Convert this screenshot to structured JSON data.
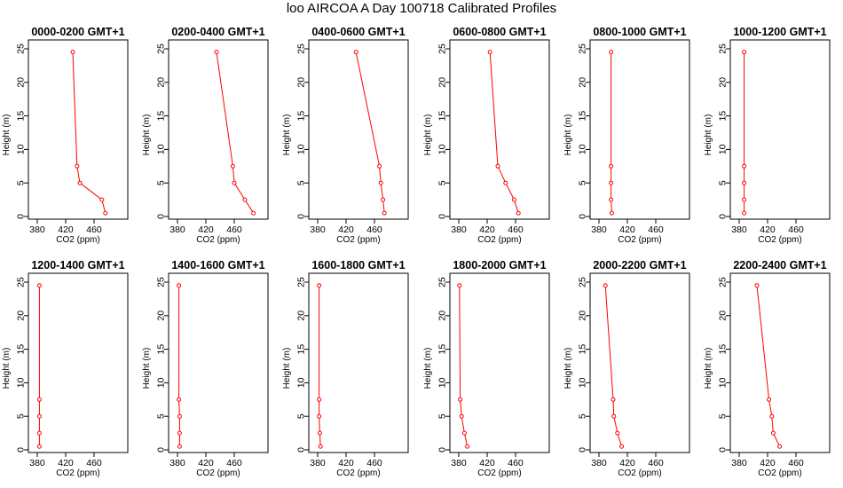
{
  "figure": {
    "title": "loo AIRCOA A  Day 100718  Calibrated Profiles"
  },
  "style": {
    "line_color": "#ff0000",
    "axis_color": "#000000"
  },
  "chart_data": [
    {
      "type": "line",
      "title": "0000-0200 GMT+1",
      "xlabel": "CO2 (ppm)",
      "ylabel": "Height (m)",
      "xlim": [
        380,
        495
      ],
      "ylim": [
        0,
        25
      ],
      "xticks": [
        380,
        420,
        460
      ],
      "yticks": [
        0,
        5,
        10,
        15,
        20,
        25
      ],
      "x": [
        430,
        436,
        440,
        471,
        476
      ],
      "y": [
        24.5,
        7.5,
        5,
        2.5,
        0.5
      ]
    },
    {
      "type": "line",
      "title": "0200-0400 GMT+1",
      "xlabel": "CO2 (ppm)",
      "ylabel": "Height (m)",
      "xlim": [
        380,
        495
      ],
      "ylim": [
        0,
        25
      ],
      "xticks": [
        380,
        420,
        460
      ],
      "yticks": [
        0,
        5,
        10,
        15,
        20,
        25
      ],
      "x": [
        435,
        458,
        460,
        475,
        487
      ],
      "y": [
        24.5,
        7.5,
        5,
        2.5,
        0.5
      ]
    },
    {
      "type": "line",
      "title": "0400-0600 GMT+1",
      "xlabel": "CO2 (ppm)",
      "ylabel": "Height (m)",
      "xlim": [
        380,
        495
      ],
      "ylim": [
        0,
        25
      ],
      "xticks": [
        380,
        420,
        460
      ],
      "yticks": [
        0,
        5,
        10,
        15,
        20,
        25
      ],
      "x": [
        434,
        467,
        469,
        472,
        474
      ],
      "y": [
        24.5,
        7.5,
        5,
        2.5,
        0.5
      ]
    },
    {
      "type": "line",
      "title": "0600-0800 GMT+1",
      "xlabel": "CO2 (ppm)",
      "ylabel": "Height (m)",
      "xlim": [
        380,
        495
      ],
      "ylim": [
        0,
        25
      ],
      "xticks": [
        380,
        420,
        460
      ],
      "yticks": [
        0,
        5,
        10,
        15,
        20,
        25
      ],
      "x": [
        424,
        435,
        446,
        458,
        464
      ],
      "y": [
        24.5,
        7.5,
        5,
        2.5,
        0.5
      ]
    },
    {
      "type": "line",
      "title": "0800-1000 GMT+1",
      "xlabel": "CO2 (ppm)",
      "ylabel": "Height (m)",
      "xlim": [
        380,
        495
      ],
      "ylim": [
        0,
        25
      ],
      "xticks": [
        380,
        420,
        460
      ],
      "yticks": [
        0,
        5,
        10,
        15,
        20,
        25
      ],
      "x": [
        397,
        397,
        397,
        397,
        398
      ],
      "y": [
        24.5,
        7.5,
        5,
        2.5,
        0.5
      ]
    },
    {
      "type": "line",
      "title": "1000-1200 GMT+1",
      "xlabel": "CO2 (ppm)",
      "ylabel": "Height (m)",
      "xlim": [
        380,
        495
      ],
      "ylim": [
        0,
        25
      ],
      "xticks": [
        380,
        420,
        460
      ],
      "yticks": [
        0,
        5,
        10,
        15,
        20,
        25
      ],
      "x": [
        387,
        387,
        387,
        387,
        387
      ],
      "y": [
        24.5,
        7.5,
        5,
        2.5,
        0.5
      ]
    },
    {
      "type": "line",
      "title": "1200-1400 GMT+1",
      "xlabel": "CO2 (ppm)",
      "ylabel": "Height (m)",
      "xlim": [
        380,
        495
      ],
      "ylim": [
        0,
        25
      ],
      "xticks": [
        380,
        420,
        460
      ],
      "yticks": [
        0,
        5,
        10,
        15,
        20,
        25
      ],
      "x": [
        383,
        383,
        383,
        383,
        383
      ],
      "y": [
        24.5,
        7.5,
        5,
        2.5,
        0.5
      ]
    },
    {
      "type": "line",
      "title": "1400-1600 GMT+1",
      "xlabel": "CO2 (ppm)",
      "ylabel": "Height (m)",
      "xlim": [
        380,
        495
      ],
      "ylim": [
        0,
        25
      ],
      "xticks": [
        380,
        420,
        460
      ],
      "yticks": [
        0,
        5,
        10,
        15,
        20,
        25
      ],
      "x": [
        382,
        382,
        383,
        383,
        383
      ],
      "y": [
        24.5,
        7.5,
        5,
        2.5,
        0.5
      ]
    },
    {
      "type": "line",
      "title": "1600-1800 GMT+1",
      "xlabel": "CO2 (ppm)",
      "ylabel": "Height (m)",
      "xlim": [
        380,
        495
      ],
      "ylim": [
        0,
        25
      ],
      "xticks": [
        380,
        420,
        460
      ],
      "yticks": [
        0,
        5,
        10,
        15,
        20,
        25
      ],
      "x": [
        382,
        382,
        382,
        383,
        384
      ],
      "y": [
        24.5,
        7.5,
        5,
        2.5,
        0.5
      ]
    },
    {
      "type": "line",
      "title": "1800-2000 GMT+1",
      "xlabel": "CO2 (ppm)",
      "ylabel": "Height (m)",
      "xlim": [
        380,
        495
      ],
      "ylim": [
        0,
        25
      ],
      "xticks": [
        380,
        420,
        460
      ],
      "yticks": [
        0,
        5,
        10,
        15,
        20,
        25
      ],
      "x": [
        381,
        382,
        384,
        388,
        392
      ],
      "y": [
        24.5,
        7.5,
        5,
        2.5,
        0.5
      ]
    },
    {
      "type": "line",
      "title": "2000-2200 GMT+1",
      "xlabel": "CO2 (ppm)",
      "ylabel": "Height (m)",
      "xlim": [
        380,
        495
      ],
      "ylim": [
        0,
        25
      ],
      "xticks": [
        380,
        420,
        460
      ],
      "yticks": [
        0,
        5,
        10,
        15,
        20,
        25
      ],
      "x": [
        389,
        400,
        401,
        406,
        412
      ],
      "y": [
        24.5,
        7.5,
        5,
        2.5,
        0.5
      ]
    },
    {
      "type": "line",
      "title": "2200-2400 GMT+1",
      "xlabel": "CO2 (ppm)",
      "ylabel": "Height (m)",
      "xlim": [
        380,
        495
      ],
      "ylim": [
        0,
        25
      ],
      "xticks": [
        380,
        420,
        460
      ],
      "yticks": [
        0,
        5,
        10,
        15,
        20,
        25
      ],
      "x": [
        405,
        422,
        426,
        428,
        437
      ],
      "y": [
        24.5,
        7.5,
        5,
        2.5,
        0.5
      ]
    }
  ]
}
